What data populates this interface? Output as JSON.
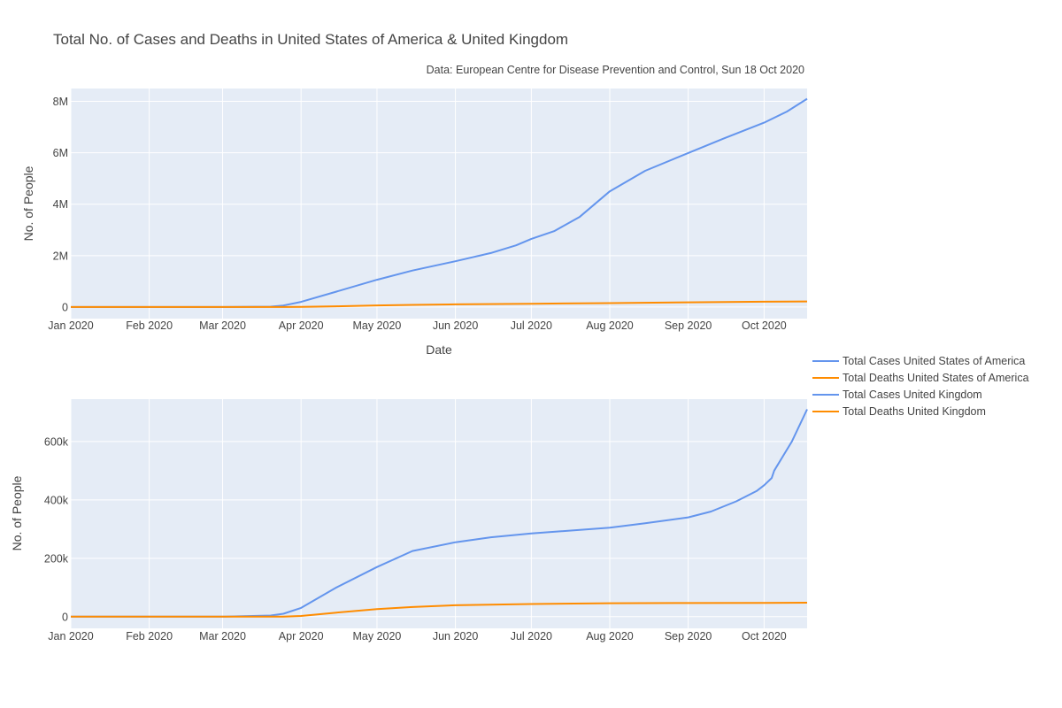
{
  "chart_data": {
    "title": "Total No. of Cases and Deaths in United States of America & United Kingdom",
    "subtitle": "Data: European Centre for Disease Prevention and Control, Sun 18 Oct 2020",
    "x_ticks": [
      {
        "date": "2020-01-01",
        "label": "Jan 2020"
      },
      {
        "date": "2020-02-01",
        "label": "Feb 2020"
      },
      {
        "date": "2020-03-01",
        "label": "Mar 2020"
      },
      {
        "date": "2020-04-01",
        "label": "Apr 2020"
      },
      {
        "date": "2020-05-01",
        "label": "May 2020"
      },
      {
        "date": "2020-06-01",
        "label": "Jun 2020"
      },
      {
        "date": "2020-07-01",
        "label": "Jul 2020"
      },
      {
        "date": "2020-08-01",
        "label": "Aug 2020"
      },
      {
        "date": "2020-09-01",
        "label": "Sep 2020"
      },
      {
        "date": "2020-10-01",
        "label": "Oct 2020"
      }
    ],
    "xlim": [
      "2020-01-01",
      "2020-10-18"
    ],
    "legend": {
      "placement": "right",
      "entries": [
        {
          "name": "Total Cases United States of America",
          "color": "#6495ed"
        },
        {
          "name": "Total Deaths United States of America",
          "color": "#ff8c00"
        },
        {
          "name": "Total Cases United Kingdom",
          "color": "#6495ed"
        },
        {
          "name": "Total Deaths United Kingdom",
          "color": "#ff8c00"
        }
      ]
    },
    "subplots": [
      {
        "type": "line",
        "xlabel": "Date",
        "ylabel": "No. of People",
        "ylim": [
          -450000,
          8500000
        ],
        "y_ticks": [
          {
            "value": 0,
            "label": "0"
          },
          {
            "value": 2000000,
            "label": "2M"
          },
          {
            "value": 4000000,
            "label": "4M"
          },
          {
            "value": 6000000,
            "label": "6M"
          },
          {
            "value": 8000000,
            "label": "8M"
          }
        ],
        "grid": true,
        "series": [
          {
            "name": "Total Cases United States of America",
            "color": "#6495ed",
            "x": [
              "2020-01-01",
              "2020-03-01",
              "2020-03-20",
              "2020-03-25",
              "2020-04-01",
              "2020-04-15",
              "2020-05-01",
              "2020-05-15",
              "2020-06-01",
              "2020-06-15",
              "2020-06-25",
              "2020-07-01",
              "2020-07-10",
              "2020-07-20",
              "2020-08-01",
              "2020-08-15",
              "2020-09-01",
              "2020-09-15",
              "2020-10-01",
              "2020-10-10",
              "2020-10-18"
            ],
            "values": [
              0,
              30,
              15000,
              60000,
              200000,
              600000,
              1060000,
              1420000,
              1780000,
              2100000,
              2400000,
              2650000,
              2950000,
              3500000,
              4500000,
              5300000,
              5990000,
              6550000,
              7170000,
              7600000,
              8100000
            ]
          },
          {
            "name": "Total Deaths United States of America",
            "color": "#ff8c00",
            "x": [
              "2020-01-01",
              "2020-03-01",
              "2020-03-25",
              "2020-04-01",
              "2020-04-15",
              "2020-05-01",
              "2020-05-15",
              "2020-06-01",
              "2020-07-01",
              "2020-08-01",
              "2020-09-01",
              "2020-10-01",
              "2020-10-18"
            ],
            "values": [
              0,
              1,
              1000,
              5000,
              28000,
              62000,
              85000,
              104000,
              127000,
              153000,
              183000,
              206000,
              219000
            ]
          }
        ]
      },
      {
        "type": "line",
        "xlabel": "",
        "ylabel": "No. of People",
        "ylim": [
          -40000,
          745000
        ],
        "y_ticks": [
          {
            "value": 0,
            "label": "0"
          },
          {
            "value": 200000,
            "label": "200k"
          },
          {
            "value": 400000,
            "label": "400k"
          },
          {
            "value": 600000,
            "label": "600k"
          }
        ],
        "grid": true,
        "series": [
          {
            "name": "Total Cases United Kingdom",
            "color": "#6495ed",
            "x": [
              "2020-01-01",
              "2020-03-01",
              "2020-03-20",
              "2020-03-25",
              "2020-04-01",
              "2020-04-15",
              "2020-05-01",
              "2020-05-15",
              "2020-06-01",
              "2020-06-15",
              "2020-07-01",
              "2020-08-01",
              "2020-08-15",
              "2020-09-01",
              "2020-09-10",
              "2020-09-20",
              "2020-09-28",
              "2020-10-01",
              "2020-10-04",
              "2020-10-05",
              "2020-10-12",
              "2020-10-18"
            ],
            "values": [
              0,
              30,
              4000,
              10000,
              30000,
              100000,
              170000,
              225000,
              255000,
              272000,
              285000,
              305000,
              320000,
              340000,
              360000,
              395000,
              430000,
              450000,
              475000,
              500000,
              600000,
              710000
            ]
          },
          {
            "name": "Total Deaths United Kingdom",
            "color": "#ff8c00",
            "x": [
              "2020-01-01",
              "2020-03-01",
              "2020-03-25",
              "2020-04-01",
              "2020-04-15",
              "2020-05-01",
              "2020-05-15",
              "2020-06-01",
              "2020-07-01",
              "2020-08-01",
              "2020-09-01",
              "2020-10-01",
              "2020-10-18"
            ],
            "values": [
              0,
              0,
              400,
              2400,
              14000,
              26000,
              33000,
              39000,
              43500,
              46000,
              46700,
              47000,
              48000
            ]
          }
        ]
      }
    ]
  }
}
